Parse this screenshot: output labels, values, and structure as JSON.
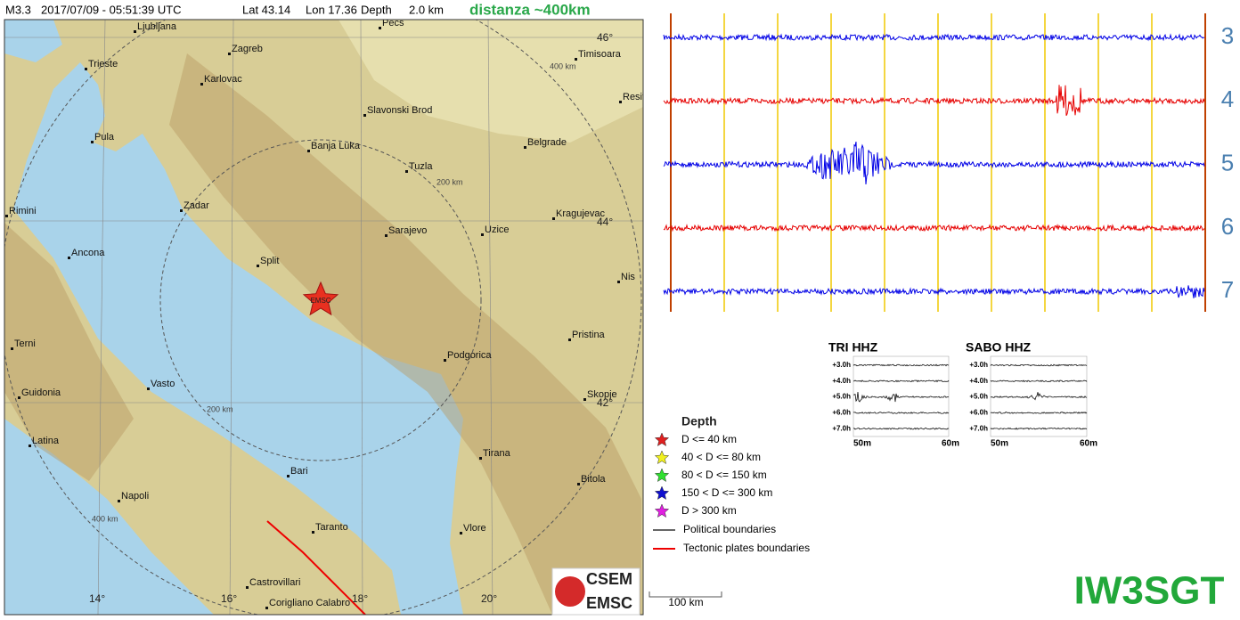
{
  "header": {
    "magnitude": "M3.3",
    "datetime": "2017/07/09 - 05:51:39 UTC",
    "lat": "Lat 43.14",
    "lon": "Lon 17.36",
    "depth": "Depth",
    "depth_value": "2.0 km",
    "distance": "distanza ~400km"
  },
  "map": {
    "cities": [
      "Ljubljana",
      "Zagreb",
      "Trieste",
      "Karlovac",
      "Pecs",
      "Timisoara",
      "Resit",
      "Slavonski Brod",
      "Pula",
      "Banja Luka",
      "Belgrade",
      "Tuzla",
      "Rimini",
      "Zadar",
      "Kragujevac",
      "Sarajevo",
      "Uzice",
      "Ancona",
      "Split",
      "Nis",
      "Pristina",
      "Terni",
      "Podgorica",
      "Vasto",
      "Guidonia",
      "Skopje",
      "Latina",
      "Tirana",
      "Bari",
      "Bitola",
      "Napoli",
      "Taranto",
      "Vlore",
      "Castrovillari",
      "Corigliano Calabro"
    ],
    "lat_labels": [
      "46°",
      "44°",
      "42°"
    ],
    "lon_labels": [
      "14°",
      "16°",
      "18°",
      "20°"
    ],
    "ring_labels": [
      "400 km",
      "200 km",
      "200 km",
      "400 km"
    ],
    "marker": "EMSC"
  },
  "legend": {
    "title": "Depth",
    "items": [
      {
        "label": "D <= 40 km",
        "color": "#e02020"
      },
      {
        "label": "40 < D <= 80 km",
        "color": "#f0f020"
      },
      {
        "label": "80 < D <= 150 km",
        "color": "#30e030"
      },
      {
        "label": "150 < D <= 300 km",
        "color": "#1010d0"
      },
      {
        "label": "D > 300 km",
        "color": "#e020e0"
      }
    ],
    "political": "Political boundaries",
    "tectonic": "Tectonic plates boundaries"
  },
  "scale": "100 km",
  "logo": [
    "CSEM",
    "EMSC"
  ],
  "seismogram": {
    "traces": [
      {
        "label": "3",
        "color": "#0000e6"
      },
      {
        "label": "4",
        "color": "#e60000"
      },
      {
        "label": "5",
        "color": "#0000e6"
      },
      {
        "label": "6",
        "color": "#e60000"
      },
      {
        "label": "7",
        "color": "#0000e6"
      }
    ]
  },
  "helicorders": [
    {
      "title": "TRI HHZ",
      "rows": [
        "+3.0h",
        "+4.0h",
        "+5.0h",
        "+6.0h",
        "+7.0h"
      ],
      "xlabels": [
        "50m",
        "60m"
      ]
    },
    {
      "title": "SABO HHZ",
      "rows": [
        "+3.0h",
        "+4.0h",
        "+5.0h",
        "+6.0h",
        "+7.0h"
      ],
      "xlabels": [
        "50m",
        "60m"
      ]
    }
  ],
  "callsign": "IW3SGT"
}
